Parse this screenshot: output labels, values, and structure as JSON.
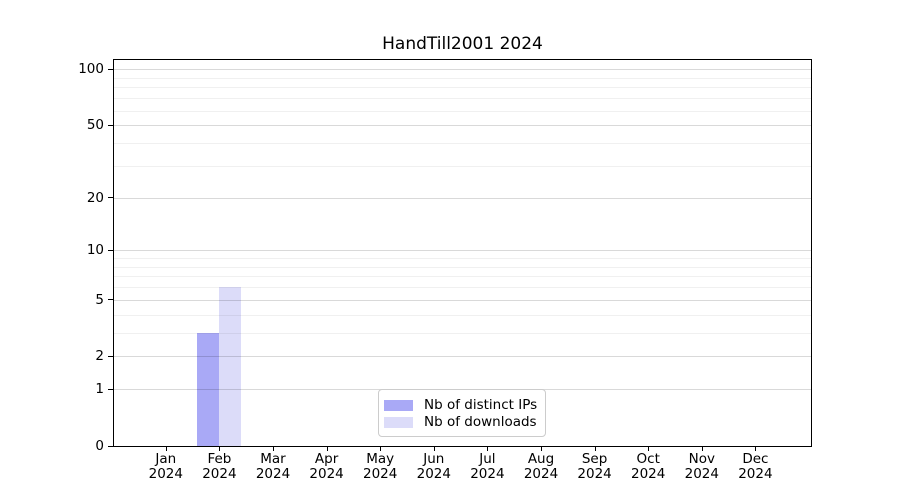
{
  "chart_data": {
    "type": "bar",
    "title": "HandTill2001 2024",
    "x": {
      "categories": [
        "Jan",
        "Feb",
        "Mar",
        "Apr",
        "May",
        "Jun",
        "Jul",
        "Aug",
        "Sep",
        "Oct",
        "Nov",
        "Dec"
      ],
      "year_suffix": "2024"
    },
    "series": [
      {
        "name": "Nb of distinct IPs",
        "color": "#a9a9f6",
        "values": [
          0,
          3,
          0,
          0,
          0,
          0,
          0,
          0,
          0,
          0,
          0,
          0
        ]
      },
      {
        "name": "Nb of downloads",
        "color": "#dcdcf9",
        "values": [
          0,
          6,
          0,
          0,
          0,
          0,
          0,
          0,
          0,
          0,
          0,
          0
        ]
      }
    ],
    "y_axis": {
      "scale": "log1p",
      "major_ticks": [
        0,
        1,
        2,
        5,
        10,
        20,
        50,
        100
      ],
      "minor_gridlines": [
        3,
        4,
        6,
        7,
        8,
        9,
        30,
        40,
        60,
        70,
        80,
        90
      ],
      "ylim": [
        0,
        112
      ]
    },
    "grid": "horizontal",
    "legend": {
      "position": "lower center"
    }
  },
  "colors": {
    "background": "#ffffff",
    "spine": "#000000",
    "grid_major": "#d9d9d9",
    "grid_minor": "#f0f0f0",
    "legend_border": "#cccccc"
  }
}
